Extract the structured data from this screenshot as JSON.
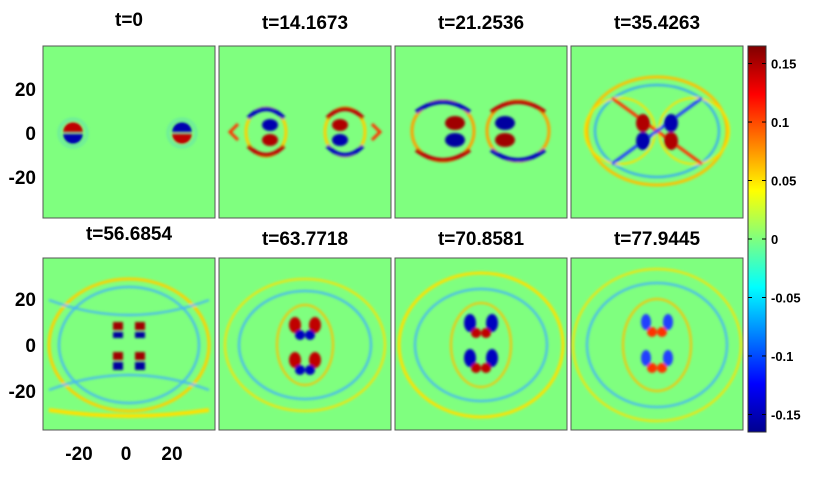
{
  "chart_data": {
    "type": "heatmap",
    "panels": [
      {
        "title": "t=0"
      },
      {
        "title": "t=14.1673"
      },
      {
        "title": "t=21.2536"
      },
      {
        "title": "t=35.4263"
      },
      {
        "title": "t=56.6854"
      },
      {
        "title": "t=63.7718"
      },
      {
        "title": "t=70.8581"
      },
      {
        "title": "t=77.9445"
      }
    ],
    "x_range": [
      -38,
      38
    ],
    "y_range": [
      -38,
      38
    ],
    "y_ticks": [
      "20",
      "0",
      "-20"
    ],
    "x_ticks": [
      "-20",
      "0",
      "20"
    ],
    "colorbar": {
      "range": [
        -0.165,
        0.165
      ],
      "ticks": [
        "0.15",
        "0.1",
        "0.05",
        "0",
        "-0.05",
        "-0.1",
        "-0.15"
      ],
      "colormap": "jet"
    },
    "background_color": "#7fff7f",
    "grid": false
  }
}
